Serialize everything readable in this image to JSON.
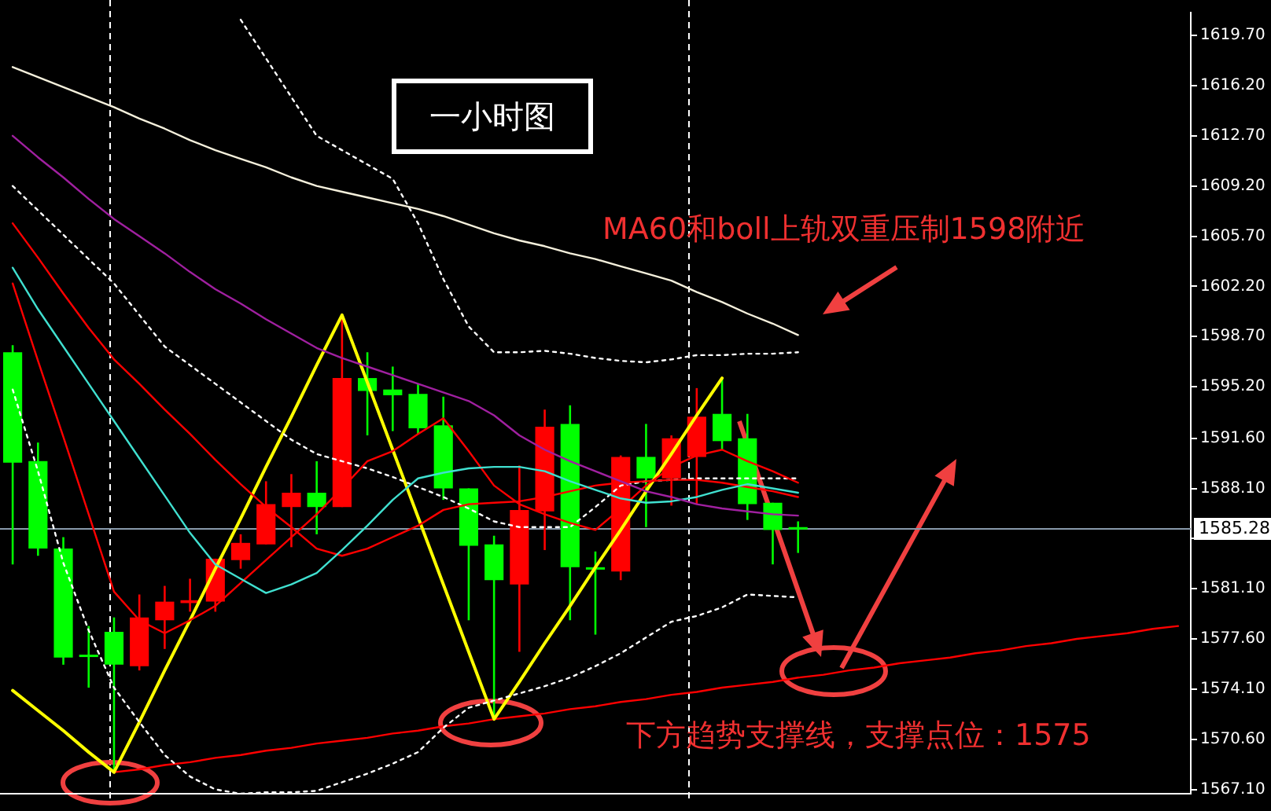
{
  "chart_data": {
    "type": "candlestick",
    "title": "一小时图",
    "annotations": [
      "MA60和boll上轨双重压制1598附近",
      "下方趋势支撑线，支撑点位：1575"
    ],
    "categories": [
      null,
      null,
      null,
      null,
      null,
      null,
      null,
      null,
      null,
      null,
      null,
      null,
      null,
      null,
      null,
      null,
      null,
      null,
      null,
      null,
      null,
      null,
      null,
      null,
      null,
      null,
      null,
      null,
      null,
      null,
      null,
      null,
      null,
      null,
      null,
      null,
      null,
      null,
      null,
      null,
      null,
      null,
      null,
      null,
      null,
      null,
      null
    ],
    "ohlc": [
      [
        1597.6,
        1598.1,
        1582.8,
        1589.9
      ],
      [
        1590.0,
        1591.3,
        1583.4,
        1583.9
      ],
      [
        1583.9,
        1584.7,
        1575.8,
        1576.3
      ],
      [
        1576.5,
        1578.5,
        1574.2,
        1576.4
      ],
      [
        1578.1,
        1579.1,
        1568.3,
        1575.8
      ],
      [
        1575.7,
        1580.7,
        1575.4,
        1579.1
      ],
      [
        1578.9,
        1581.3,
        1576.9,
        1580.2
      ],
      [
        1580.1,
        1581.8,
        1579.5,
        1580.3
      ],
      [
        1580.2,
        1583.2,
        1579.5,
        1583.2
      ],
      [
        1583.1,
        1584.9,
        1582.5,
        1584.3
      ],
      [
        1584.2,
        1588.6,
        1584.2,
        1587.0
      ],
      [
        1586.8,
        1589.1,
        1584.0,
        1587.8
      ],
      [
        1587.8,
        1590.0,
        1584.9,
        1586.8
      ],
      [
        1586.8,
        1600.2,
        1586.8,
        1595.8
      ],
      [
        1595.8,
        1597.6,
        1591.8,
        1594.9
      ],
      [
        1595.0,
        1596.6,
        1592.1,
        1594.6
      ],
      [
        1594.7,
        1595.4,
        1591.9,
        1592.3
      ],
      [
        1592.5,
        1594.5,
        1587.3,
        1588.1
      ],
      [
        1588.1,
        1588.1,
        1578.9,
        1584.1
      ],
      [
        1584.2,
        1584.8,
        1572.0,
        1581.7
      ],
      [
        1581.4,
        1589.7,
        1576.7,
        1586.6
      ],
      [
        1586.5,
        1593.6,
        1583.8,
        1592.4
      ],
      [
        1592.6,
        1593.9,
        1578.9,
        1582.6
      ],
      [
        1582.6,
        1583.7,
        1577.9,
        1582.5
      ],
      [
        1582.3,
        1590.4,
        1581.7,
        1590.3
      ],
      [
        1590.3,
        1592.6,
        1585.4,
        1588.8
      ],
      [
        1588.8,
        1591.8,
        1586.9,
        1591.6
      ],
      [
        1590.3,
        1595.1,
        1587.0,
        1593.1
      ],
      [
        1593.3,
        1595.8,
        1590.8,
        1591.4
      ],
      [
        1591.6,
        1593.3,
        1585.9,
        1587.0
      ],
      [
        1587.1,
        1587.1,
        1582.8,
        1585.2
      ],
      [
        1585.4,
        1585.8,
        1583.6,
        1585.3
      ],
      null,
      null,
      null,
      null,
      null,
      null,
      null,
      null,
      null,
      null,
      null,
      null,
      null,
      null,
      null
    ],
    "colors": [
      "#00ff00",
      "#00ff00",
      "#00ff00",
      "#00ff00",
      "#00ff00",
      "#ff0000",
      "#ff0000",
      "#ff0000",
      "#ff0000",
      "#ff0000",
      "#ff0000",
      "#ff0000",
      "#00ff00",
      "#ff0000",
      "#00ff00",
      "#00ff00",
      "#00ff00",
      "#00ff00",
      "#00ff00",
      "#00ff00",
      "#ff0000",
      "#ff0000",
      "#00ff00",
      "#00ff00",
      "#ff0000",
      "#00ff00",
      "#ff0000",
      "#ff0000",
      "#00ff00",
      "#00ff00",
      "#00ff00",
      "#00ff00",
      null,
      null,
      null,
      null,
      null,
      null,
      null,
      null,
      null,
      null,
      null,
      null,
      null,
      null,
      null
    ],
    "series": [
      {
        "type": "line",
        "color": "#f5f0dc",
        "line_style": "solid",
        "values": [
          1617.5,
          1616.8,
          1616.1,
          1615.4,
          1614.7,
          1613.9,
          1613.2,
          1612.4,
          1611.7,
          1611.1,
          1610.5,
          1609.8,
          1609.2,
          1608.8,
          1608.4,
          1608.0,
          1607.6,
          1607.1,
          1606.5,
          1605.9,
          1605.4,
          1605.0,
          1604.5,
          1604.1,
          1603.6,
          1603.1,
          1602.6,
          1601.8,
          1601.1,
          1600.3,
          1599.6,
          1598.8,
          null,
          null,
          null,
          null,
          null,
          null,
          null,
          null,
          null,
          null,
          null,
          null,
          null,
          null,
          null
        ]
      },
      {
        "type": "line",
        "color": "#a020a0",
        "line_style": "solid",
        "values": [
          1612.7,
          1611.2,
          1609.8,
          1608.3,
          1606.9,
          1605.7,
          1604.5,
          1603.2,
          1602.0,
          1601.0,
          1599.9,
          1598.9,
          1597.9,
          1597.2,
          1596.6,
          1596.0,
          1595.4,
          1594.8,
          1594.2,
          1593.2,
          1591.8,
          1590.8,
          1590.0,
          1589.3,
          1588.6,
          1587.9,
          1587.5,
          1587.0,
          1586.7,
          1586.5,
          1586.3,
          1586.2,
          null,
          null,
          null,
          null,
          null,
          null,
          null,
          null,
          null,
          null,
          null,
          null,
          null,
          null,
          null
        ]
      },
      {
        "type": "line",
        "color": "#40e0d0",
        "line_style": "solid",
        "values": [
          1603.5,
          1600.6,
          1598.0,
          1595.4,
          1592.8,
          1590.2,
          1587.6,
          1585.0,
          1582.8,
          1581.8,
          1580.8,
          1581.4,
          1582.2,
          1583.8,
          1585.5,
          1587.3,
          1588.8,
          1589.2,
          1589.5,
          1589.6,
          1589.6,
          1589.3,
          1588.6,
          1588.0,
          1587.4,
          1587.1,
          1587.2,
          1587.5,
          1588.0,
          1588.4,
          1588.1,
          1587.8,
          null,
          null,
          null,
          null,
          null,
          null,
          null,
          null,
          null,
          null,
          null,
          null,
          null,
          null,
          null
        ]
      },
      {
        "type": "line",
        "color": "#ff0000",
        "line_style": "solid",
        "values": [
          1606.6,
          1604.2,
          1601.7,
          1599.3,
          1597.1,
          1595.4,
          1593.6,
          1591.9,
          1590.1,
          1588.4,
          1586.8,
          1585.4,
          1583.9,
          1583.4,
          1583.9,
          1584.7,
          1585.5,
          1586.6,
          1587.0,
          1587.1,
          1587.2,
          1587.5,
          1587.9,
          1588.3,
          1588.5,
          1588.6,
          1588.7,
          1588.7,
          1588.5,
          1588.2,
          1587.9,
          1587.5,
          null,
          null,
          null,
          null,
          null,
          null,
          null,
          null,
          null,
          null,
          null,
          null,
          null,
          null,
          null
        ]
      },
      {
        "type": "line",
        "color": "#ff0000",
        "line_style": "solid",
        "values": [
          1602.4,
          1597.0,
          1591.7,
          1586.3,
          1580.9,
          1578.9,
          1578.0,
          1578.9,
          1579.9,
          1581.5,
          1583.1,
          1584.7,
          1586.3,
          1588.1,
          1590.0,
          1590.7,
          1591.9,
          1593.0,
          1590.7,
          1588.3,
          1587.0,
          1586.3,
          1585.7,
          1585.2,
          1586.7,
          1588.3,
          1589.6,
          1590.4,
          1590.8,
          1590.0,
          1589.3,
          1588.5,
          null,
          null,
          null,
          null,
          null,
          null,
          null,
          null,
          null,
          null,
          null,
          null,
          null,
          null,
          null
        ]
      },
      {
        "type": "line",
        "color": "#ffffff",
        "line_style": "dotted",
        "values": [
          null,
          null,
          null,
          null,
          null,
          null,
          null,
          null,
          null,
          1620.8,
          1618.1,
          1615.4,
          1612.7,
          1611.7,
          1610.7,
          1609.7,
          1606.6,
          1602.7,
          1599.4,
          1597.6,
          1597.6,
          1597.7,
          1597.5,
          1597.2,
          1597.0,
          1596.9,
          1597.1,
          1597.4,
          1597.4,
          1597.5,
          1597.5,
          1597.6,
          null,
          null,
          null,
          null,
          null,
          null,
          null,
          null,
          null,
          null,
          null,
          null,
          null,
          null,
          null
        ]
      },
      {
        "type": "line",
        "color": "#ffffff",
        "line_style": "dotted",
        "values": [
          1609.2,
          1607.5,
          1605.8,
          1604.1,
          1602.4,
          1600.2,
          1598.0,
          1596.7,
          1595.4,
          1594.1,
          1592.8,
          1591.5,
          1590.5,
          1590.0,
          1589.5,
          1588.9,
          1588.2,
          1587.5,
          1586.7,
          1585.8,
          1585.4,
          1585.4,
          1585.4,
          1586.8,
          1588.3,
          1588.6,
          1588.7,
          1588.8,
          1588.8,
          1588.8,
          1588.8,
          1588.8,
          null,
          null,
          null,
          null,
          null,
          null,
          null,
          null,
          null,
          null,
          null,
          null,
          null,
          null,
          null
        ]
      },
      {
        "type": "line",
        "color": "#ffffff",
        "line_style": "dotted",
        "values": [
          1595.0,
          1589.3,
          1582.9,
          1578.2,
          1574.2,
          1571.8,
          1569.5,
          1568.0,
          1567.1,
          1566.8,
          1566.9,
          1566.9,
          1567.0,
          1567.6,
          1568.2,
          1568.9,
          1569.7,
          1571.4,
          1572.8,
          1573.3,
          1573.8,
          1574.3,
          1574.9,
          1575.7,
          1576.6,
          1577.7,
          1578.8,
          1579.2,
          1579.8,
          1580.7,
          1580.6,
          1580.5,
          null,
          null,
          null,
          null,
          null,
          null,
          null,
          null,
          null,
          null,
          null,
          null,
          null,
          null,
          null
        ]
      },
      {
        "type": "line",
        "color": "#ffff00",
        "line_style": "solid",
        "values": [
          1574.0,
          1572.6,
          1571.2,
          1569.7,
          1568.3,
          1571.8,
          1575.4,
          1578.9,
          1582.5,
          1586.0,
          1589.6,
          1593.1,
          1596.7,
          1600.2,
          1595.5,
          1590.8,
          1586.1,
          1581.4,
          1576.7,
          1572.0,
          1574.6,
          1577.3,
          1579.9,
          1582.6,
          1585.2,
          1587.9,
          1590.5,
          1593.2,
          1595.8,
          null,
          null,
          null,
          null,
          null,
          null,
          null,
          null,
          null,
          null,
          null,
          null,
          null,
          null,
          null,
          null,
          null,
          null
        ]
      },
      {
        "type": "line",
        "color": "#ff0000",
        "line_style": "solid",
        "values": [
          null,
          null,
          null,
          null,
          1568.3,
          1568.5,
          1568.8,
          1569.0,
          1569.3,
          1569.5,
          1569.8,
          1570.0,
          1570.3,
          1570.5,
          1570.7,
          1571.0,
          1571.2,
          1571.5,
          1571.7,
          1572.0,
          1572.2,
          1572.4,
          1572.7,
          1572.9,
          1573.2,
          1573.4,
          1573.7,
          1573.9,
          1574.2,
          1574.4,
          1574.6,
          1574.9,
          1575.1,
          1575.4,
          1575.6,
          1575.9,
          1576.1,
          1576.3,
          1576.6,
          1576.8,
          1577.1,
          1577.3,
          1577.6,
          1577.8,
          1578.0,
          1578.3,
          1578.5
        ]
      }
    ],
    "ref_lines": [
      {
        "axis": "y",
        "value": 1585.28,
        "label": "1585.28",
        "color": "#8899aa",
        "line_style": "solid"
      }
    ],
    "ylim": [
      1566.8,
      1621.3
    ],
    "yticks": [
      {
        "value": 1619.7,
        "label": "1619.70"
      },
      {
        "value": 1616.2,
        "label": "1616.20"
      },
      {
        "value": 1612.7,
        "label": "1612.70"
      },
      {
        "value": 1609.2,
        "label": "1609.20"
      },
      {
        "value": 1605.7,
        "label": "1605.70"
      },
      {
        "value": 1602.2,
        "label": "1602.20"
      },
      {
        "value": 1598.7,
        "label": "1598.70"
      },
      {
        "value": 1595.2,
        "label": "1595.20"
      },
      {
        "value": 1591.6,
        "label": "1591.60"
      },
      {
        "value": 1588.1,
        "label": "1588.10"
      },
      {
        "value": 1584.6,
        "label": null
      },
      {
        "value": 1581.1,
        "label": "1581.10"
      },
      {
        "value": 1577.6,
        "label": "1577.60"
      },
      {
        "value": 1574.1,
        "label": "1574.10"
      },
      {
        "value": 1570.6,
        "label": "1570.60"
      },
      {
        "value": 1567.1,
        "label": "1567.10"
      }
    ],
    "tick_labels": "y"
  }
}
